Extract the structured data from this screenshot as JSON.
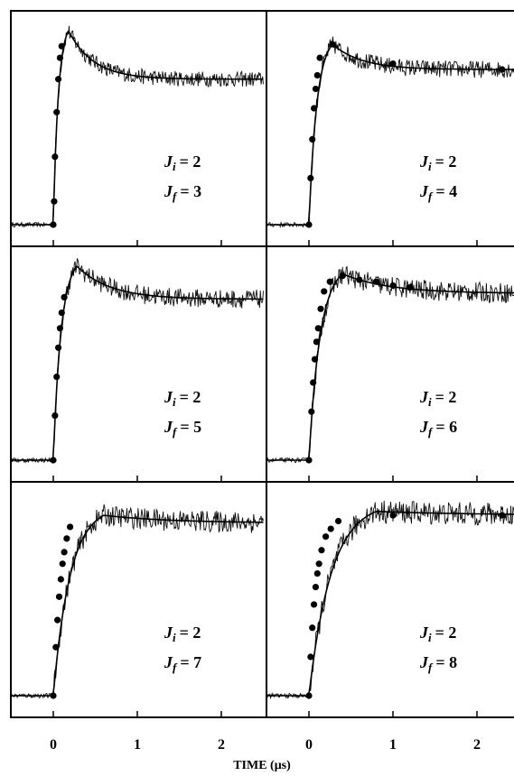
{
  "chart_data": {
    "type": "line",
    "xlabel": "TIME (μs)",
    "xticks": [
      "0",
      "1",
      "2"
    ],
    "xlim": [
      -0.5,
      2.5
    ],
    "grid": false,
    "layout_words": "3 rows x 2 columns of panels sharing the time axis",
    "panels": [
      {
        "label_i": "J",
        "sub_i": "i",
        "val_i": "= 2",
        "label_f": "J",
        "sub_f": "f",
        "val_f": "= 3",
        "baseline": 0.0,
        "peak": 1.0,
        "peak_time": 0.18,
        "plateau": 0.75,
        "decay_tau": 0.3,
        "fit_points_x": [
          0.0,
          0.01,
          0.02,
          0.04,
          0.06,
          0.08,
          0.1
        ],
        "fit_points_y": [
          0.0,
          0.12,
          0.35,
          0.58,
          0.75,
          0.86,
          0.92
        ]
      },
      {
        "label_i": "J",
        "sub_i": "i",
        "val_i": "= 2",
        "label_f": "J",
        "sub_f": "f",
        "val_f": "= 4",
        "baseline": 0.0,
        "peak": 0.93,
        "peak_time": 0.28,
        "plateau": 0.8,
        "decay_tau": 0.35,
        "fit_points_x": [
          0.0,
          0.02,
          0.04,
          0.06,
          0.08,
          0.1,
          0.13,
          0.28,
          1.0,
          2.3
        ],
        "fit_points_y": [
          0.0,
          0.24,
          0.44,
          0.6,
          0.7,
          0.77,
          0.86,
          0.93,
          0.83,
          0.8
        ]
      },
      {
        "label_i": "J",
        "sub_i": "i",
        "val_i": "= 2",
        "label_f": "J",
        "sub_f": "f",
        "val_f": "= 5",
        "baseline": 0.0,
        "peak": 1.0,
        "peak_time": 0.28,
        "plateau": 0.83,
        "decay_tau": 0.4,
        "fit_points_x": [
          0.0,
          0.02,
          0.04,
          0.06,
          0.08,
          0.1,
          0.13
        ],
        "fit_points_y": [
          0.0,
          0.23,
          0.43,
          0.58,
          0.68,
          0.76,
          0.84
        ]
      },
      {
        "label_i": "J",
        "sub_i": "i",
        "val_i": "= 2",
        "label_f": "J",
        "sub_f": "f",
        "val_f": "= 6",
        "baseline": 0.0,
        "peak": 0.96,
        "peak_time": 0.4,
        "plateau": 0.86,
        "decay_tau": 0.55,
        "fit_points_x": [
          0.0,
          0.03,
          0.05,
          0.07,
          0.09,
          0.11,
          0.14,
          0.18,
          0.25,
          0.4,
          0.6,
          0.8,
          1.0,
          1.2
        ],
        "fit_points_y": [
          0.0,
          0.25,
          0.4,
          0.52,
          0.61,
          0.68,
          0.78,
          0.87,
          0.92,
          0.95,
          0.93,
          0.92,
          0.9,
          0.89
        ]
      },
      {
        "label_i": "J",
        "sub_i": "i",
        "val_i": "= 2",
        "label_f": "J",
        "sub_f": "f",
        "val_f": "= 7",
        "baseline": 0.0,
        "peak": 0.93,
        "peak_time": 0.6,
        "plateau": 0.89,
        "decay_tau": 0.8,
        "fit_points_x": [
          0.0,
          0.03,
          0.05,
          0.07,
          0.09,
          0.11,
          0.13,
          0.16,
          0.2
        ],
        "fit_points_y": [
          0.0,
          0.25,
          0.39,
          0.51,
          0.6,
          0.68,
          0.74,
          0.81,
          0.87
        ]
      },
      {
        "label_i": "J",
        "sub_i": "i",
        "val_i": "= 2",
        "label_f": "J",
        "sub_f": "f",
        "val_f": "= 8",
        "baseline": 0.0,
        "peak": 0.95,
        "peak_time": 0.8,
        "plateau": 0.93,
        "decay_tau": 1.2,
        "fit_points_x": [
          0.0,
          0.02,
          0.04,
          0.06,
          0.08,
          0.1,
          0.12,
          0.15,
          0.2,
          0.26,
          0.35,
          1.0,
          2.3
        ],
        "fit_points_y": [
          0.0,
          0.2,
          0.35,
          0.47,
          0.56,
          0.63,
          0.68,
          0.75,
          0.82,
          0.86,
          0.9,
          0.93,
          0.93
        ]
      }
    ]
  }
}
